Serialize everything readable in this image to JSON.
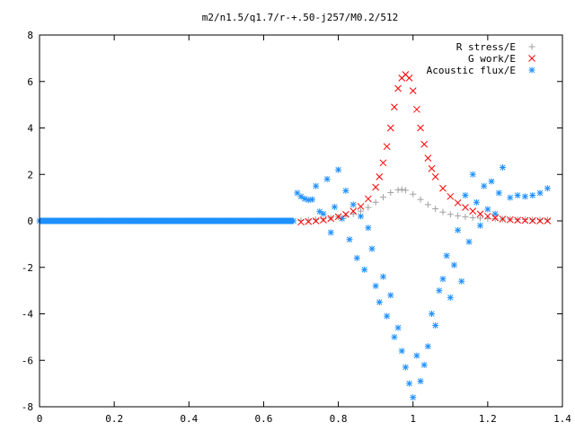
{
  "chart_data": {
    "type": "scatter",
    "title": "m2/n1.5/q1.7/r-+.50-j257/M0.2/512",
    "xlabel": "",
    "ylabel": "",
    "xlim": [
      0,
      1.4
    ],
    "ylim": [
      -8,
      8
    ],
    "x_ticks": [
      "0",
      "0.2",
      "0.4",
      "0.6",
      "0.8",
      "1",
      "1.2",
      "1.4"
    ],
    "y_ticks": [
      "8",
      "6",
      "4",
      "2",
      "0",
      "-2",
      "-4",
      "-6",
      "-8"
    ],
    "legend_position": "top-right",
    "grid": false,
    "series": [
      {
        "name": "R stress/E",
        "marker": "plus",
        "color": "#a0a0a0",
        "x": [
          0.7,
          0.72,
          0.74,
          0.76,
          0.78,
          0.8,
          0.82,
          0.84,
          0.86,
          0.88,
          0.9,
          0.92,
          0.94,
          0.96,
          0.97,
          0.98,
          1.0,
          1.02,
          1.04,
          1.06,
          1.08,
          1.1,
          1.12,
          1.14,
          1.16,
          1.18,
          1.2,
          1.22,
          1.24,
          1.26,
          1.28,
          1.3,
          1.32,
          1.34,
          1.36
        ],
        "y": [
          0.02,
          0.04,
          0.06,
          0.09,
          0.12,
          0.17,
          0.22,
          0.3,
          0.42,
          0.58,
          0.8,
          1.02,
          1.22,
          1.33,
          1.35,
          1.32,
          1.15,
          0.92,
          0.7,
          0.52,
          0.38,
          0.28,
          0.22,
          0.17,
          0.14,
          0.12,
          0.1,
          0.09,
          0.08,
          0.07,
          0.06,
          0.06,
          0.05,
          0.05,
          0.05
        ]
      },
      {
        "name": "G work/E",
        "marker": "cross",
        "color": "#ff0000",
        "x": [
          0.7,
          0.72,
          0.74,
          0.76,
          0.78,
          0.8,
          0.82,
          0.84,
          0.86,
          0.88,
          0.9,
          0.91,
          0.92,
          0.93,
          0.94,
          0.95,
          0.96,
          0.97,
          0.98,
          0.99,
          1.0,
          1.01,
          1.02,
          1.03,
          1.04,
          1.05,
          1.06,
          1.08,
          1.1,
          1.12,
          1.14,
          1.16,
          1.18,
          1.2,
          1.22,
          1.24,
          1.26,
          1.28,
          1.3,
          1.32,
          1.34,
          1.36
        ],
        "y": [
          -0.05,
          -0.03,
          0.0,
          0.04,
          0.1,
          0.18,
          0.28,
          0.42,
          0.62,
          0.95,
          1.45,
          1.9,
          2.5,
          3.2,
          4.0,
          4.9,
          5.7,
          6.15,
          6.3,
          6.15,
          5.6,
          4.8,
          4.0,
          3.3,
          2.7,
          2.25,
          1.9,
          1.4,
          1.05,
          0.78,
          0.58,
          0.42,
          0.3,
          0.2,
          0.13,
          0.08,
          0.05,
          0.03,
          0.02,
          0.01,
          0.0,
          0.0
        ]
      },
      {
        "name": "Acoustic flux/E",
        "marker": "star",
        "color": "#1e90ff",
        "x": [
          0.0,
          0.02,
          0.04,
          0.06,
          0.08,
          0.1,
          0.12,
          0.14,
          0.16,
          0.18,
          0.2,
          0.22,
          0.24,
          0.26,
          0.28,
          0.3,
          0.32,
          0.34,
          0.36,
          0.38,
          0.4,
          0.42,
          0.44,
          0.46,
          0.48,
          0.5,
          0.52,
          0.54,
          0.56,
          0.58,
          0.6,
          0.62,
          0.64,
          0.66,
          0.68,
          0.69,
          0.7,
          0.71,
          0.72,
          0.73,
          0.74,
          0.75,
          0.76,
          0.77,
          0.78,
          0.79,
          0.8,
          0.81,
          0.82,
          0.83,
          0.84,
          0.85,
          0.86,
          0.87,
          0.88,
          0.89,
          0.9,
          0.91,
          0.92,
          0.93,
          0.94,
          0.95,
          0.96,
          0.97,
          0.98,
          0.99,
          1.0,
          1.01,
          1.02,
          1.03,
          1.04,
          1.05,
          1.06,
          1.07,
          1.08,
          1.09,
          1.1,
          1.11,
          1.12,
          1.13,
          1.14,
          1.15,
          1.16,
          1.17,
          1.18,
          1.19,
          1.2,
          1.21,
          1.22,
          1.23,
          1.24,
          1.26,
          1.28,
          1.3,
          1.32,
          1.34,
          1.36
        ],
        "y": [
          0.0,
          0.0,
          0.0,
          0.0,
          0.0,
          0.0,
          0.0,
          0.0,
          0.0,
          0.0,
          0.0,
          0.0,
          0.0,
          0.0,
          0.0,
          0.0,
          0.0,
          0.0,
          0.0,
          0.0,
          0.0,
          0.0,
          0.0,
          0.0,
          0.0,
          0.0,
          0.0,
          0.0,
          0.0,
          0.0,
          0.0,
          0.0,
          0.0,
          0.0,
          0.0,
          1.2,
          1.05,
          0.95,
          0.9,
          0.92,
          1.5,
          0.4,
          0.3,
          1.8,
          -0.5,
          0.6,
          2.2,
          0.1,
          1.3,
          -0.8,
          0.7,
          -1.6,
          0.2,
          -2.1,
          -0.3,
          -1.2,
          -2.8,
          -3.5,
          -2.4,
          -4.1,
          -3.2,
          -5.0,
          -4.6,
          -5.6,
          -6.3,
          -7.0,
          -7.6,
          -5.8,
          -6.9,
          -6.2,
          -5.4,
          -4.0,
          -4.5,
          -3.0,
          -2.5,
          -1.5,
          -3.3,
          -1.9,
          -0.4,
          -2.6,
          1.1,
          -0.9,
          2.0,
          0.8,
          -0.2,
          1.5,
          0.5,
          1.7,
          0.3,
          1.2,
          2.3,
          1.0,
          1.1,
          1.05,
          1.1,
          1.2,
          1.4
        ]
      }
    ]
  }
}
